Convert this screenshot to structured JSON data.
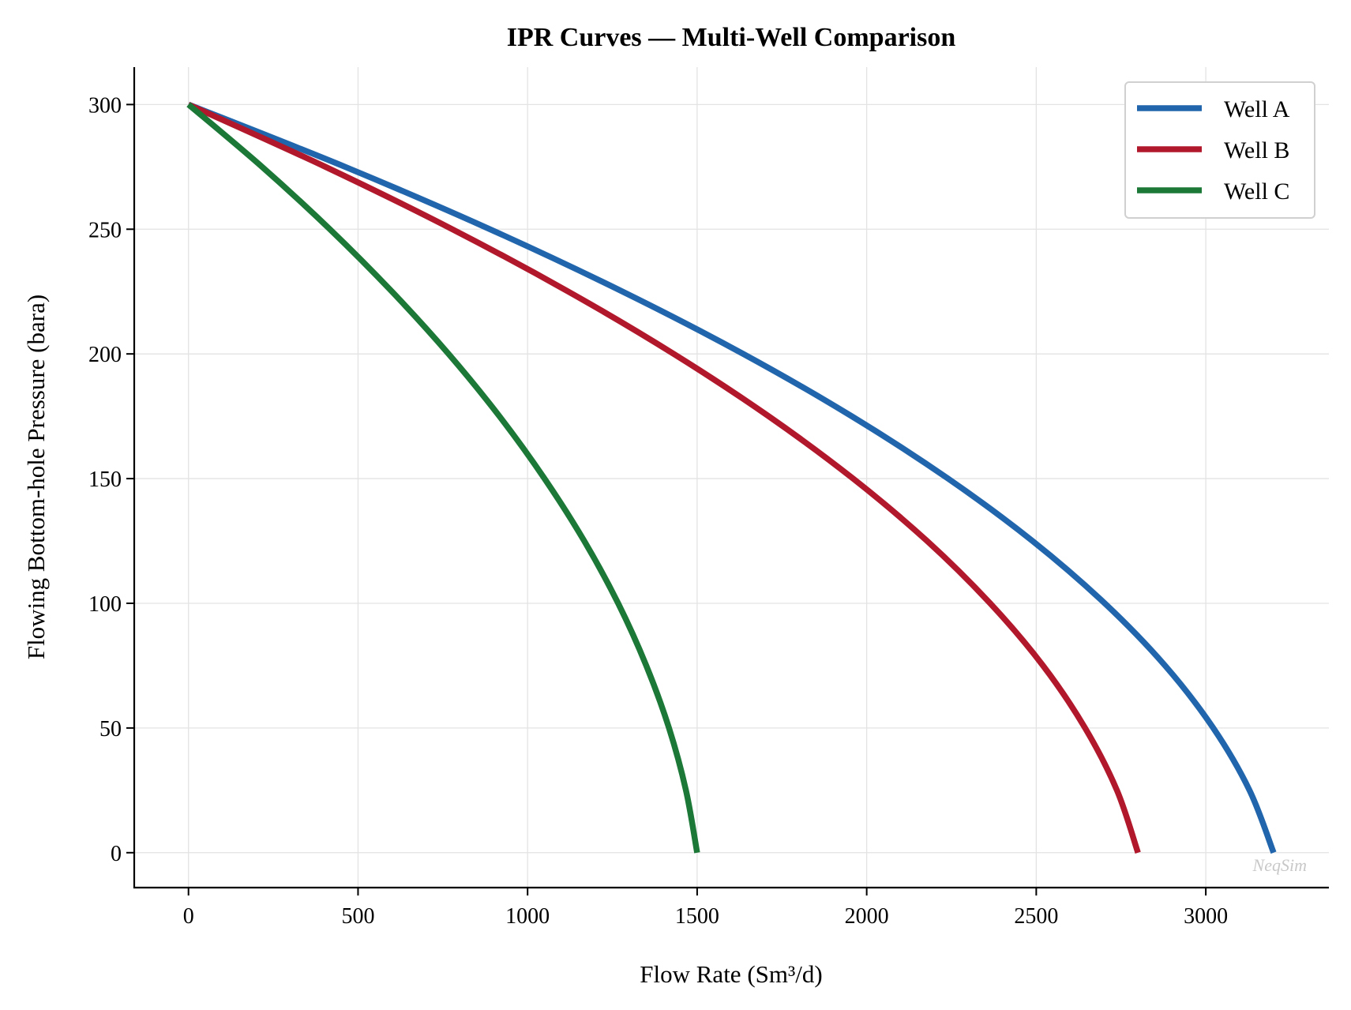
{
  "chart_data": {
    "type": "line",
    "title": "IPR Curves — Multi-Well Comparison",
    "xlabel": "Flow Rate (Sm³/d)",
    "ylabel": "Flowing Bottom-hole Pressure (bara)",
    "xlim": [
      -160,
      3363
    ],
    "ylim": [
      -14,
      315
    ],
    "xticks": [
      0,
      500,
      1000,
      1500,
      2000,
      2500,
      3000
    ],
    "yticks": [
      0,
      50,
      100,
      150,
      200,
      250,
      300
    ],
    "grid": true,
    "legend_position": "top-right",
    "watermark": "NeqSim",
    "pressure": [
      0,
      25,
      50,
      75,
      100,
      125,
      150,
      175,
      200,
      225,
      250,
      275,
      300
    ],
    "series": [
      {
        "name": "Well A",
        "color": "#2166ac",
        "flow": [
          3200,
          3129,
          3022,
          2880,
          2702,
          2489,
          2240,
          1956,
          1636,
          1280,
          889,
          462,
          0
        ]
      },
      {
        "name": "Well B",
        "color": "#b2182b",
        "flow": [
          2800,
          2738,
          2644,
          2520,
          2364,
          2178,
          1960,
          1711,
          1431,
          1120,
          778,
          404,
          0
        ]
      },
      {
        "name": "Well C",
        "color": "#1b7837",
        "flow": [
          1500,
          1467,
          1417,
          1350,
          1267,
          1167,
          1050,
          917,
          767,
          600,
          417,
          217,
          0
        ]
      }
    ]
  }
}
